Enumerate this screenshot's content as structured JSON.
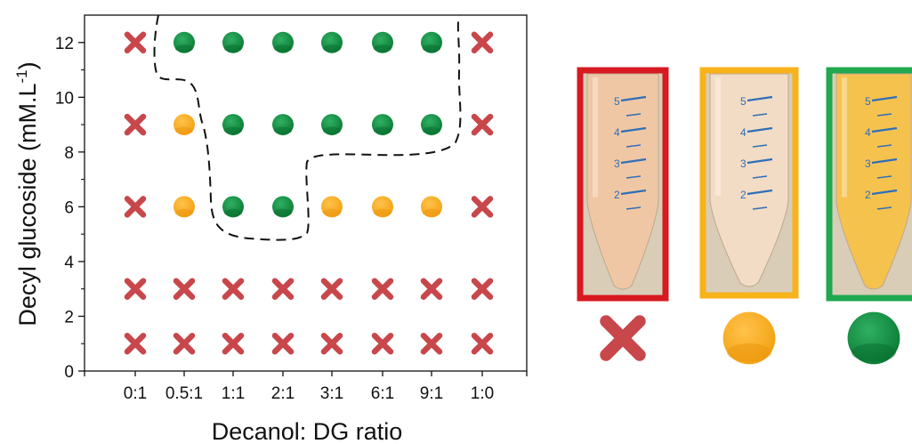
{
  "chart_data": {
    "type": "scatter",
    "xlabel": "Decanol: DG ratio",
    "ylabel_main": "Decyl glucoside (mM.L",
    "ylabel_sup": "-1",
    "ylabel_close": ")",
    "categories": [
      "0:1",
      "0.5:1",
      "1:1",
      "2:1",
      "3:1",
      "6:1",
      "9:1",
      "1:0"
    ],
    "yticks": [
      0,
      2,
      4,
      6,
      8,
      10,
      12
    ],
    "ylim": [
      0,
      13
    ],
    "grid": false,
    "marker_colors": {
      "cross": "#c8474b",
      "orange": "#fbac1c",
      "green": "#0b8a3d"
    },
    "series": [
      {
        "y": 12,
        "markers": [
          "cross",
          "green",
          "green",
          "green",
          "green",
          "green",
          "green",
          "cross"
        ]
      },
      {
        "y": 9,
        "markers": [
          "cross",
          "orange",
          "green",
          "green",
          "green",
          "green",
          "green",
          "cross"
        ]
      },
      {
        "y": 6,
        "markers": [
          "cross",
          "orange",
          "green",
          "green",
          "orange",
          "orange",
          "orange",
          "cross"
        ]
      },
      {
        "y": 3,
        "markers": [
          "cross",
          "cross",
          "cross",
          "cross",
          "cross",
          "cross",
          "cross",
          "cross"
        ]
      },
      {
        "y": 1,
        "markers": [
          "cross",
          "cross",
          "cross",
          "cross",
          "cross",
          "cross",
          "cross",
          "cross"
        ]
      }
    ],
    "boundary": "dashed",
    "legend_panels": [
      {
        "frame": "#d71920",
        "marker": "cross",
        "tube_fill": "#f0c7a4",
        "marks": [
          "5",
          "4",
          "3",
          "2"
        ]
      },
      {
        "frame": "#f8b21a",
        "marker": "orange",
        "tube_fill": "#f3dcc5",
        "marks": [
          "5",
          "4",
          "3",
          "2"
        ]
      },
      {
        "frame": "#1fa84f",
        "marker": "green",
        "tube_fill": "#f6c24e",
        "marks": [
          "5",
          "4",
          "3",
          "2"
        ]
      }
    ]
  }
}
